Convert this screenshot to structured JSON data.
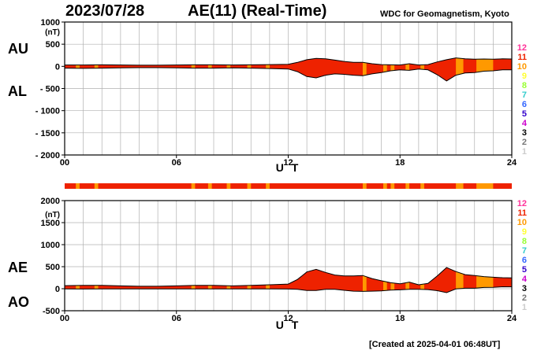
{
  "header": {
    "date": "2023/07/28",
    "title": "AE(11) (Real-Time)",
    "source": "WDC for Geomagnetism, Kyoto"
  },
  "footer": {
    "created": "[Created at 2025-04-01 06:48UT]"
  },
  "colors": {
    "fill_red": "#ee2200",
    "fill_orange": "#ff9900",
    "outline": "#000000",
    "grid": "#b0b0b0",
    "station_count": {
      "12": "#ff3399",
      "11": "#ee2200",
      "10": "#ff9900",
      "9": "#ffff33",
      "8": "#99ff33",
      "7": "#33cccc",
      "6": "#3366ff",
      "5": "#3300cc",
      "4": "#cc00cc",
      "3": "#000000",
      "2": "#777777",
      "1": "#cccccc"
    }
  },
  "chart_data": [
    {
      "type": "area",
      "panel": "AU/AL",
      "series": [
        {
          "name": "AU",
          "x": [
            0,
            1,
            2,
            3,
            4,
            5,
            6,
            7,
            8,
            9,
            10,
            11,
            12,
            12.5,
            13,
            13.5,
            14,
            14.5,
            15,
            15.5,
            16,
            16.5,
            17,
            17.5,
            18,
            18.5,
            19,
            19.5,
            20,
            20.5,
            21,
            21.5,
            22,
            22.5,
            23,
            23.5,
            24
          ],
          "values": [
            30,
            30,
            35,
            30,
            25,
            25,
            30,
            35,
            35,
            30,
            35,
            40,
            45,
            90,
            150,
            180,
            170,
            140,
            110,
            90,
            90,
            60,
            40,
            35,
            30,
            60,
            30,
            40,
            100,
            150,
            190,
            170,
            160,
            165,
            160,
            170,
            165
          ]
        },
        {
          "name": "AL",
          "x": [
            0,
            1,
            2,
            3,
            4,
            5,
            6,
            7,
            8,
            9,
            10,
            11,
            12,
            12.5,
            13,
            13.5,
            14,
            14.5,
            15,
            15.5,
            16,
            16.5,
            17,
            17.5,
            18,
            18.5,
            19,
            19.5,
            20,
            20.5,
            21,
            21.5,
            22,
            22.5,
            23,
            23.5,
            24
          ],
          "values": [
            -40,
            -45,
            -40,
            -35,
            -30,
            -30,
            -35,
            -40,
            -40,
            -35,
            -40,
            -50,
            -60,
            -120,
            -230,
            -260,
            -200,
            -170,
            -180,
            -200,
            -210,
            -170,
            -140,
            -100,
            -80,
            -90,
            -60,
            -80,
            -190,
            -330,
            -200,
            -150,
            -140,
            -110,
            -100,
            -80,
            -80
          ]
        }
      ],
      "xlabel": "U T",
      "ylabel": "(nT)",
      "series_labels": [
        "AU",
        "AL"
      ],
      "xlim": [
        0,
        24
      ],
      "ylim": [
        -2000,
        1000
      ],
      "xticks": [
        "00",
        "06",
        "12",
        "18",
        "24"
      ],
      "yticks": [
        1000,
        500,
        0,
        -500,
        -1000,
        -1500,
        -2000
      ],
      "ytick_labels": [
        "1000",
        "500",
        "0",
        "- 500",
        "- 1000",
        "- 1500",
        "- 2000"
      ],
      "grid": true
    },
    {
      "type": "area",
      "panel": "AE/AO",
      "series": [
        {
          "name": "AE",
          "x": [
            0,
            1,
            2,
            3,
            4,
            5,
            6,
            7,
            8,
            9,
            10,
            11,
            12,
            12.5,
            13,
            13.5,
            14,
            14.5,
            15,
            15.5,
            16,
            16.5,
            17,
            17.5,
            18,
            18.5,
            19,
            19.5,
            20,
            20.5,
            21,
            21.5,
            22,
            22.5,
            23,
            23.5,
            24
          ],
          "values": [
            70,
            75,
            75,
            65,
            55,
            55,
            65,
            75,
            75,
            65,
            75,
            90,
            105,
            210,
            380,
            440,
            370,
            310,
            290,
            290,
            300,
            230,
            180,
            135,
            110,
            150,
            90,
            120,
            290,
            480,
            390,
            320,
            300,
            275,
            260,
            250,
            245
          ]
        },
        {
          "name": "AO",
          "x": [
            0,
            1,
            2,
            3,
            4,
            5,
            6,
            7,
            8,
            9,
            10,
            11,
            12,
            12.5,
            13,
            13.5,
            14,
            14.5,
            15,
            15.5,
            16,
            16.5,
            17,
            17.5,
            18,
            18.5,
            19,
            19.5,
            20,
            20.5,
            21,
            21.5,
            22,
            22.5,
            23,
            23.5,
            24
          ],
          "values": [
            -5,
            -8,
            -3,
            -3,
            -3,
            -3,
            -3,
            -3,
            -3,
            -3,
            -3,
            -5,
            -8,
            -15,
            -40,
            -40,
            -15,
            -15,
            -35,
            -55,
            -60,
            -55,
            -50,
            -33,
            -25,
            -15,
            -15,
            -20,
            -45,
            -90,
            -5,
            10,
            10,
            28,
            30,
            45,
            43
          ]
        }
      ],
      "xlabel": "U T",
      "ylabel": "(nT)",
      "series_labels": [
        "AE",
        "AO"
      ],
      "xlim": [
        0,
        24
      ],
      "ylim": [
        -500,
        2000
      ],
      "xticks": [
        "00",
        "06",
        "12",
        "18",
        "24"
      ],
      "yticks": [
        2000,
        1500,
        1000,
        500,
        0,
        -500
      ],
      "ytick_labels": [
        "2000",
        "1500",
        "1000",
        "500",
        "0",
        "-500"
      ],
      "grid": true
    }
  ],
  "station_bar": {
    "orange_intervals": [
      [
        0.6,
        0.8
      ],
      [
        1.6,
        1.8
      ],
      [
        6.8,
        7.0
      ],
      [
        7.7,
        7.9
      ],
      [
        8.7,
        8.9
      ],
      [
        9.8,
        10.0
      ],
      [
        10.8,
        11.0
      ],
      [
        16.0,
        16.2
      ],
      [
        17.1,
        17.3
      ],
      [
        17.5,
        17.7
      ],
      [
        18.3,
        18.5
      ],
      [
        19.1,
        19.3
      ],
      [
        21.0,
        21.4
      ],
      [
        22.1,
        23.0
      ]
    ]
  },
  "station_legend": [
    "12",
    "11",
    "10",
    "9",
    "8",
    "7",
    "6",
    "5",
    "4",
    "3",
    "2",
    "1"
  ]
}
